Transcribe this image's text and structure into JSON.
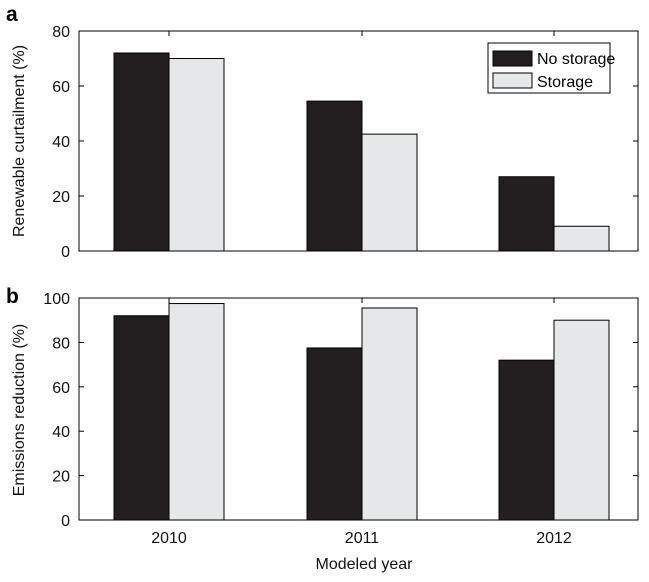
{
  "chart_data": [
    {
      "panel": "a",
      "type": "bar",
      "categories": [
        "2010",
        "2011",
        "2012"
      ],
      "series": [
        {
          "name": "No storage",
          "values": [
            72,
            54.5,
            27
          ]
        },
        {
          "name": "Storage",
          "values": [
            70,
            42.5,
            9
          ]
        }
      ],
      "ylabel": "Renewable curtailment (%)",
      "xlabel": "",
      "ylim": [
        0,
        80
      ],
      "yticks": [
        "0",
        "20",
        "40",
        "60",
        "80"
      ],
      "legend": "top-right",
      "grid": false
    },
    {
      "panel": "b",
      "type": "bar",
      "categories": [
        "2010",
        "2011",
        "2012"
      ],
      "series": [
        {
          "name": "No storage",
          "values": [
            92,
            77.5,
            72
          ]
        },
        {
          "name": "Storage",
          "values": [
            97.5,
            95.5,
            90
          ]
        }
      ],
      "ylabel": "Emissions reduction (%)",
      "xlabel": "Modeled year",
      "ylim": [
        0,
        100
      ],
      "yticks": [
        "0",
        "20",
        "40",
        "60",
        "80",
        "100"
      ],
      "legend": "none",
      "grid": false
    }
  ],
  "colors": {
    "no_storage": "#231f20",
    "storage": "#e6e7e8",
    "axis": "#000000"
  }
}
